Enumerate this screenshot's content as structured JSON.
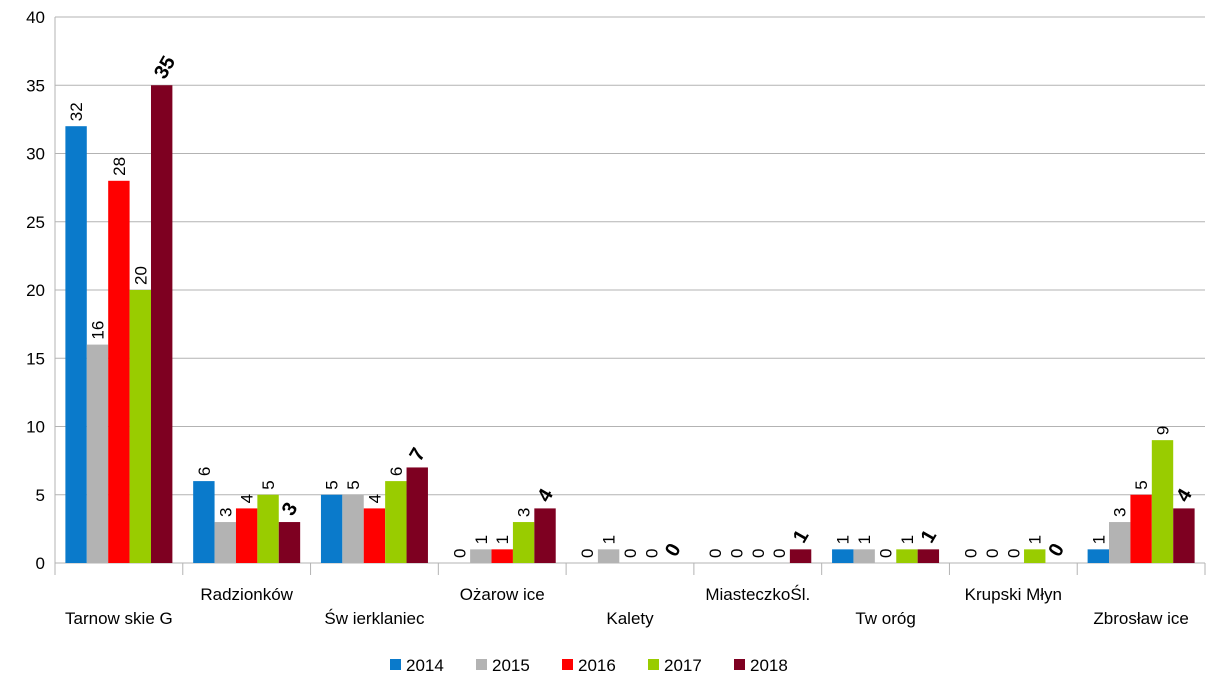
{
  "chart_data": {
    "type": "bar",
    "categories": [
      "Tarnow skie G",
      "Radzionków",
      "Św ierklaniec",
      "Ożarow ice",
      "Kalety",
      "MiasteczkoŚl.",
      "Tw oróg",
      "Krupski Młyn",
      "Zbrosław ice"
    ],
    "series": [
      {
        "name": "2014",
        "color": "#0a7acb",
        "values": [
          32,
          6,
          5,
          0,
          0,
          0,
          1,
          0,
          1
        ]
      },
      {
        "name": "2015",
        "color": "#b3b3b3",
        "values": [
          16,
          3,
          5,
          1,
          1,
          0,
          1,
          0,
          3
        ]
      },
      {
        "name": "2016",
        "color": "#ff0000",
        "values": [
          28,
          4,
          4,
          1,
          0,
          0,
          0,
          0,
          5
        ]
      },
      {
        "name": "2017",
        "color": "#99cc00",
        "values": [
          20,
          5,
          6,
          3,
          0,
          0,
          1,
          1,
          9
        ]
      },
      {
        "name": "2018",
        "color": "#7e0021",
        "values": [
          35,
          3,
          7,
          4,
          0,
          1,
          1,
          0,
          4
        ]
      }
    ],
    "ylim": [
      0,
      40
    ],
    "yticks": [
      0,
      5,
      10,
      15,
      20,
      25,
      30,
      35,
      40
    ],
    "grid": true,
    "legend": "bottom"
  }
}
